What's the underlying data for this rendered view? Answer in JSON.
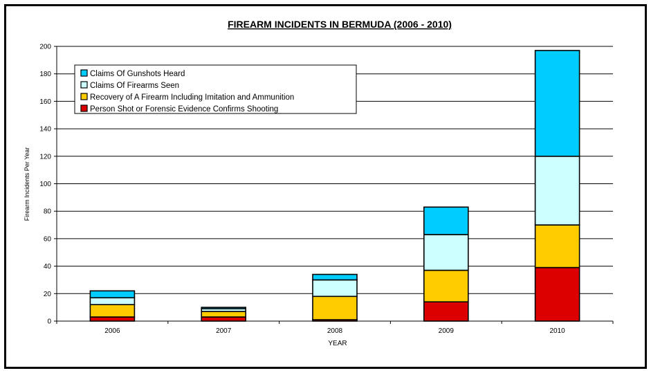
{
  "chart_data": {
    "type": "bar",
    "stacked": true,
    "title": "FIREARM INCIDENTS IN BERMUDA (2006 - 2010)",
    "xlabel": "YEAR",
    "ylabel": "Firearm Incidents Per Year",
    "ylim": [
      0,
      200
    ],
    "yticks": [
      0,
      20,
      40,
      60,
      80,
      100,
      120,
      140,
      160,
      180,
      200
    ],
    "grid": true,
    "legend_position": "top-left",
    "categories": [
      "2006",
      "2007",
      "2008",
      "2009",
      "2010"
    ],
    "series": [
      {
        "name": "Person Shot or Forensic Evidence Confirms Shooting",
        "color": "#dd0000",
        "values": [
          3,
          3,
          1,
          14,
          39
        ]
      },
      {
        "name": "Recovery of A Firearm Including Imitation and Ammunition",
        "color": "#ffcc00",
        "values": [
          9,
          4,
          17,
          23,
          31
        ]
      },
      {
        "name": "Claims Of Firearms Seen",
        "color": "#ccffff",
        "values": [
          5,
          2,
          12,
          26,
          50
        ]
      },
      {
        "name": "Claims Of Gunshots Heard",
        "color": "#00ccff",
        "values": [
          5,
          1,
          4,
          20,
          77
        ]
      }
    ],
    "legend_order": [
      3,
      2,
      1,
      0
    ]
  }
}
